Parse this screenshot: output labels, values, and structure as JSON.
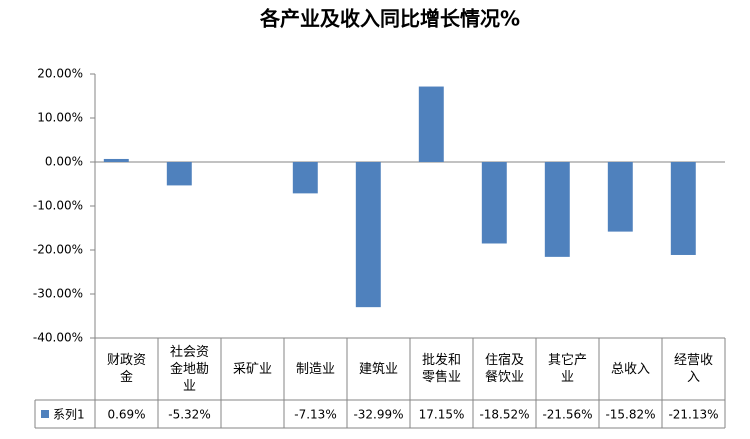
{
  "chart_data": {
    "type": "bar",
    "title": "各产业及收入同比增长情况%",
    "categories": [
      "财政资金",
      "社会资金地勘业",
      "采矿业",
      "制造业",
      "建筑业",
      "批发和零售业",
      "住宿及餐饮业",
      "其它产业",
      "总收入",
      "经营收入"
    ],
    "series": [
      {
        "name": "系列1",
        "color": "#4f81bd",
        "values": [
          0.69,
          -5.32,
          null,
          -7.13,
          -32.99,
          17.15,
          -18.52,
          -21.56,
          -15.82,
          -21.13
        ],
        "value_labels": [
          "0.69%",
          "-5.32%",
          null,
          "-7.13%",
          "-32.99%",
          "17.15%",
          "-18.52%",
          "-21.56%",
          "-15.82%",
          "-21.13%"
        ]
      }
    ],
    "ylim": [
      -40,
      20
    ],
    "yticks": [
      {
        "value": 20,
        "label": "20.00%"
      },
      {
        "value": 10,
        "label": "10.00%"
      },
      {
        "value": 0,
        "label": "0.00%"
      },
      {
        "value": -10,
        "label": "-10.00%"
      },
      {
        "value": -20,
        "label": "-20.00%"
      },
      {
        "value": -30,
        "label": "-30.00%"
      },
      {
        "value": -40,
        "label": "-40.00%"
      }
    ],
    "grid": false,
    "legend": "data-table"
  }
}
